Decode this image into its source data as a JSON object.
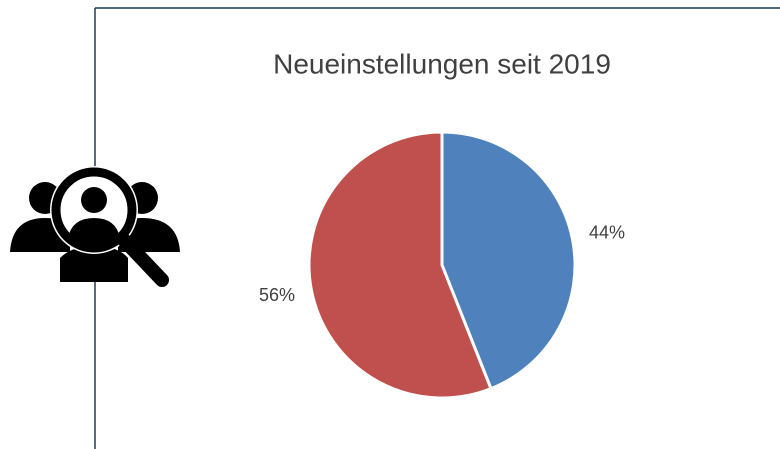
{
  "chart_data": {
    "type": "pie",
    "title": "Neueinstellungen seit 2019",
    "values": [
      44,
      56
    ],
    "value_labels": [
      "44%",
      "56%"
    ],
    "colors": [
      "#4f81bd",
      "#c0504d"
    ]
  }
}
